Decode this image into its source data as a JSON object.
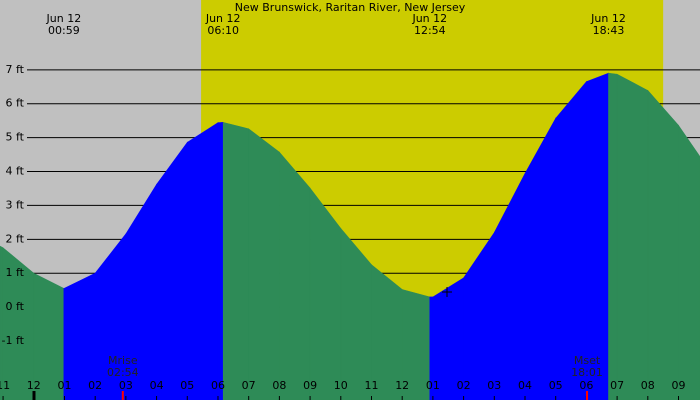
{
  "chart_data": {
    "type": "tide",
    "title": "New Brunswick, Raritan River, New Jersey",
    "x": [
      -1.1,
      -1,
      0,
      0.98,
      2,
      3,
      4,
      5,
      6,
      6.17,
      7,
      8,
      9,
      10,
      11,
      12,
      12.9,
      13,
      14,
      15,
      16,
      17,
      18,
      18.72,
      19,
      20,
      21,
      21.7
    ],
    "values": [
      1.8,
      1.75,
      1.0,
      0.55,
      1.0,
      2.16,
      3.62,
      4.86,
      5.44,
      5.45,
      5.26,
      4.57,
      3.51,
      2.32,
      1.25,
      0.52,
      0.3,
      0.3,
      0.86,
      2.2,
      3.94,
      5.57,
      6.65,
      6.9,
      6.87,
      6.39,
      5.36,
      4.44
    ],
    "rise_color": "#0000ff",
    "fall_color": "#2e8b57",
    "night_color": "#c0c0c0",
    "day_color": "#cccc00",
    "daylight": [
      5.45,
      20.5
    ],
    "xlim": [
      -1.1,
      21.7
    ],
    "ylim": [
      -2.74,
      9.06
    ],
    "xticks": [
      {
        "value": -1,
        "label": "11"
      },
      {
        "value": 0,
        "label": "12"
      },
      {
        "value": 1,
        "label": "01"
      },
      {
        "value": 2,
        "label": "02"
      },
      {
        "value": 3,
        "label": "03"
      },
      {
        "value": 4,
        "label": "04"
      },
      {
        "value": 5,
        "label": "05"
      },
      {
        "value": 6,
        "label": "06"
      },
      {
        "value": 7,
        "label": "07"
      },
      {
        "value": 8,
        "label": "08"
      },
      {
        "value": 9,
        "label": "09"
      },
      {
        "value": 10,
        "label": "10"
      },
      {
        "value": 11,
        "label": "11"
      },
      {
        "value": 12,
        "label": "12"
      },
      {
        "value": 13,
        "label": "01"
      },
      {
        "value": 14,
        "label": "02"
      },
      {
        "value": 15,
        "label": "03"
      },
      {
        "value": 16,
        "label": "04"
      },
      {
        "value": 17,
        "label": "05"
      },
      {
        "value": 18,
        "label": "06"
      },
      {
        "value": 19,
        "label": "07"
      },
      {
        "value": 20,
        "label": "08"
      },
      {
        "value": 21,
        "label": "09"
      }
    ],
    "yticks": [
      {
        "value": -1,
        "label": "-1 ft"
      },
      {
        "value": 0,
        "label": "0 ft"
      },
      {
        "value": 1,
        "label": "1 ft"
      },
      {
        "value": 2,
        "label": "2 ft"
      },
      {
        "value": 3,
        "label": "3 ft"
      },
      {
        "value": 4,
        "label": "4 ft"
      },
      {
        "value": 5,
        "label": "5 ft"
      },
      {
        "value": 6,
        "label": "6 ft"
      },
      {
        "value": 7,
        "label": "7 ft"
      }
    ],
    "extremes": [
      {
        "date": "Jun 12",
        "time": "00:59",
        "x": 0.98
      },
      {
        "date": "Jun 12",
        "time": "06:10",
        "x": 6.17
      },
      {
        "date": "Jun 12",
        "time": "12:54",
        "x": 12.9
      },
      {
        "date": "Jun 12",
        "time": "18:43",
        "x": 18.72
      }
    ],
    "moon": [
      {
        "label": "Mrise",
        "time": "02:54",
        "x": 2.9
      },
      {
        "label": "Mset",
        "time": "18:01",
        "x": 18.02
      }
    ]
  }
}
